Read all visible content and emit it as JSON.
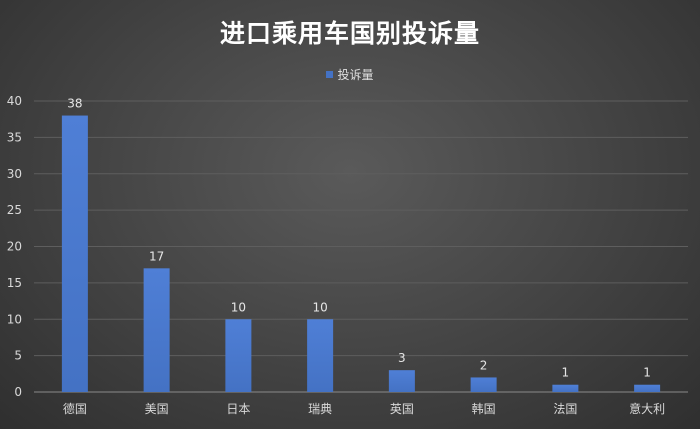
{
  "chart_data": {
    "type": "bar",
    "title": "进口乘用车国别投诉量",
    "categories": [
      "德国",
      "美国",
      "日本",
      "瑞典",
      "英国",
      "韩国",
      "法国",
      "意大利"
    ],
    "series": [
      {
        "name": "投诉量",
        "values": [
          38,
          17,
          10,
          10,
          3,
          2,
          1,
          1
        ]
      }
    ],
    "ylim": [
      0,
      40
    ],
    "yticks": [
      "0",
      "5",
      "10",
      "15",
      "20",
      "25",
      "30",
      "35",
      "40"
    ],
    "grid": true,
    "legend_position": "top-center",
    "bar_color": "#4472c4"
  }
}
